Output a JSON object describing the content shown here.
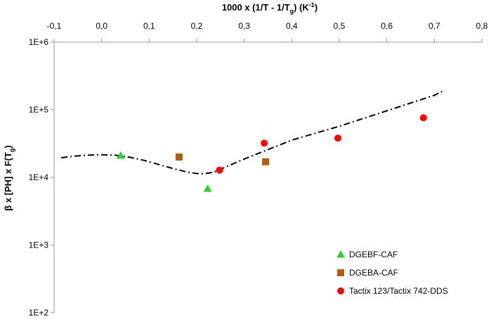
{
  "chart_data": {
    "type": "scatter",
    "x_axis": {
      "title": "1000 x (1/T - 1/T",
      "title_sub": "g",
      "title_unit": ") (K",
      "title_sup": "-1",
      "title_end": ")",
      "position": "top",
      "range": [
        -0.1,
        0.8
      ],
      "ticks": [
        -0.1,
        0.0,
        0.1,
        0.2,
        0.3,
        0.4,
        0.5,
        0.6,
        0.7,
        0.8
      ],
      "tick_labels": [
        "-0,1",
        "0,0",
        "0,1",
        "0,2",
        "0,3",
        "0,4",
        "0,5",
        "0,6",
        "0,7",
        "0,8"
      ]
    },
    "y_axis": {
      "title": "β x [PH] x F(T",
      "title_sub": "g",
      "title_end": ")",
      "scale": "log",
      "range": [
        100,
        1000000
      ],
      "ticks": [
        100,
        1000,
        10000,
        100000,
        1000000
      ],
      "tick_labels": [
        "1E+2",
        "1E+3",
        "1E+4",
        "1E+5",
        "1E+6"
      ]
    },
    "grid": false,
    "legend_position": "bottom-right",
    "series": [
      {
        "name": "DGEBF-CAF",
        "marker": "triangle",
        "color": "#33cc33",
        "points": [
          [
            0.04,
            21000
          ],
          [
            0.223,
            6800
          ]
        ]
      },
      {
        "name": "DGEBA-CAF",
        "marker": "square",
        "color": "#b35c10",
        "points": [
          [
            0.163,
            20000
          ],
          [
            0.345,
            17000
          ]
        ]
      },
      {
        "name": "Tactix 123/Tactix 742-DDS",
        "marker": "circle",
        "color": "#ff0000",
        "points": [
          [
            0.248,
            12800
          ],
          [
            0.342,
            32000
          ],
          [
            0.497,
            38000
          ],
          [
            0.677,
            76000
          ]
        ]
      }
    ],
    "trend_line": {
      "style": "dash-dot",
      "color": "#000000",
      "points": [
        [
          -0.085,
          19500
        ],
        [
          -0.06,
          20500
        ],
        [
          -0.03,
          21300
        ],
        [
          0.0,
          21600
        ],
        [
          0.03,
          21200
        ],
        [
          0.06,
          19800
        ],
        [
          0.09,
          17800
        ],
        [
          0.12,
          15500
        ],
        [
          0.15,
          13500
        ],
        [
          0.18,
          12000
        ],
        [
          0.2,
          11400
        ],
        [
          0.215,
          11300
        ],
        [
          0.235,
          11900
        ],
        [
          0.25,
          13200
        ],
        [
          0.3,
          18700
        ],
        [
          0.4,
          35500
        ],
        [
          0.5,
          57000
        ],
        [
          0.6,
          96500
        ],
        [
          0.7,
          163000
        ],
        [
          0.72,
          192000
        ]
      ]
    }
  }
}
